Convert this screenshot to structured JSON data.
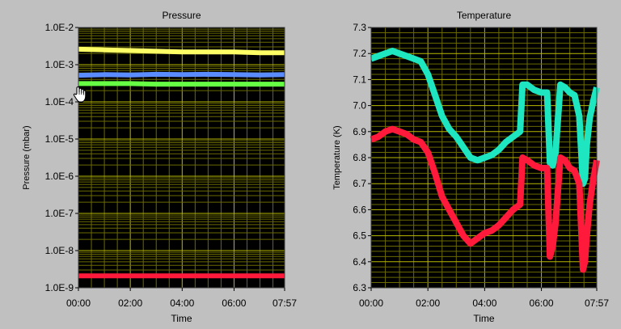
{
  "chart_data": [
    {
      "type": "line",
      "title": "Pressure",
      "xlabel": "Time",
      "ylabel": "Pressure (mbar)",
      "y_scale": "log",
      "ylim": [
        1e-09,
        0.01
      ],
      "xlim_minutes": [
        0,
        477
      ],
      "x_ticks": [
        "00:00",
        "02:00",
        "04:00",
        "06:00",
        "07:57"
      ],
      "x_tick_minutes": [
        0,
        120,
        240,
        360,
        477
      ],
      "y_ticks": [
        "1.0E-9",
        "1.0E-8",
        "1.0E-7",
        "1.0E-6",
        "1.0E-5",
        "1.0E-4",
        "1.0E-3",
        "1.0E-2"
      ],
      "y_tick_values": [
        1e-09,
        1e-08,
        1e-07,
        1e-06,
        1e-05,
        0.0001,
        0.001,
        0.01
      ],
      "grid": true,
      "series": [
        {
          "color": "#ffff66",
          "x": [
            0,
            60,
            120,
            180,
            240,
            300,
            360,
            420,
            477
          ],
          "y": [
            0.0026,
            0.0025,
            0.0024,
            0.0023,
            0.0022,
            0.0022,
            0.0022,
            0.0021,
            0.0021
          ]
        },
        {
          "color": "#5a8cff",
          "x": [
            0,
            60,
            120,
            180,
            240,
            300,
            360,
            420,
            477
          ],
          "y": [
            0.00052,
            0.00054,
            0.00053,
            0.00055,
            0.00054,
            0.00055,
            0.00054,
            0.00053,
            0.00054
          ]
        },
        {
          "color": "#66ff44",
          "x": [
            0,
            60,
            120,
            180,
            240,
            300,
            360,
            420,
            477
          ],
          "y": [
            0.00031,
            0.00031,
            0.00031,
            0.0003,
            0.0003,
            0.0003,
            0.0003,
            0.0003,
            0.0003
          ]
        },
        {
          "color": "#ff1a3c",
          "x": [
            0,
            120,
            240,
            360,
            477
          ],
          "y": [
            2.1e-09,
            2.1e-09,
            2.1e-09,
            2.1e-09,
            2.1e-09
          ]
        }
      ]
    },
    {
      "type": "line",
      "title": "Temperature",
      "xlabel": "Time",
      "ylabel": "Temperature (K)",
      "ylim": [
        6.3,
        7.3
      ],
      "xlim_minutes": [
        0,
        477
      ],
      "x_ticks": [
        "00:00",
        "02:00",
        "04:00",
        "06:00",
        "07:57"
      ],
      "x_tick_minutes": [
        0,
        120,
        240,
        360,
        477
      ],
      "y_ticks": [
        "6.3",
        "6.4",
        "6.5",
        "6.6",
        "6.7",
        "6.8",
        "6.9",
        "7.0",
        "7.1",
        "7.2",
        "7.3"
      ],
      "y_tick_values": [
        6.3,
        6.4,
        6.5,
        6.6,
        6.7,
        6.8,
        6.9,
        7.0,
        7.1,
        7.2,
        7.3
      ],
      "grid": true,
      "series": [
        {
          "color": "#1ee6c0",
          "x": [
            0,
            15,
            30,
            45,
            60,
            75,
            90,
            105,
            120,
            135,
            150,
            165,
            180,
            195,
            210,
            225,
            240,
            255,
            270,
            285,
            300,
            315,
            320,
            330,
            345,
            360,
            372,
            378,
            384,
            390,
            400,
            410,
            420,
            430,
            440,
            448,
            452,
            456,
            462,
            470,
            477
          ],
          "y": [
            7.18,
            7.19,
            7.2,
            7.21,
            7.2,
            7.19,
            7.18,
            7.17,
            7.12,
            7.04,
            6.96,
            6.91,
            6.88,
            6.84,
            6.8,
            6.79,
            6.8,
            6.81,
            6.83,
            6.86,
            6.88,
            6.9,
            7.08,
            7.08,
            7.06,
            7.05,
            7.05,
            6.78,
            6.77,
            6.82,
            7.08,
            7.07,
            7.05,
            7.04,
            6.96,
            6.7,
            6.72,
            6.85,
            6.95,
            7.02,
            7.07
          ]
        },
        {
          "color": "#ff1a3c",
          "x": [
            0,
            15,
            30,
            45,
            60,
            75,
            90,
            105,
            120,
            135,
            150,
            165,
            180,
            195,
            210,
            225,
            240,
            255,
            270,
            285,
            300,
            315,
            320,
            330,
            345,
            360,
            372,
            378,
            384,
            390,
            400,
            410,
            420,
            430,
            440,
            448,
            452,
            456,
            462,
            470,
            477
          ],
          "y": [
            6.87,
            6.88,
            6.9,
            6.91,
            6.9,
            6.89,
            6.87,
            6.86,
            6.82,
            6.74,
            6.65,
            6.6,
            6.55,
            6.5,
            6.47,
            6.49,
            6.51,
            6.52,
            6.54,
            6.57,
            6.6,
            6.62,
            6.8,
            6.79,
            6.77,
            6.76,
            6.76,
            6.42,
            6.46,
            6.55,
            6.8,
            6.79,
            6.76,
            6.75,
            6.7,
            6.37,
            6.4,
            6.5,
            6.62,
            6.72,
            6.79
          ]
        }
      ]
    }
  ]
}
